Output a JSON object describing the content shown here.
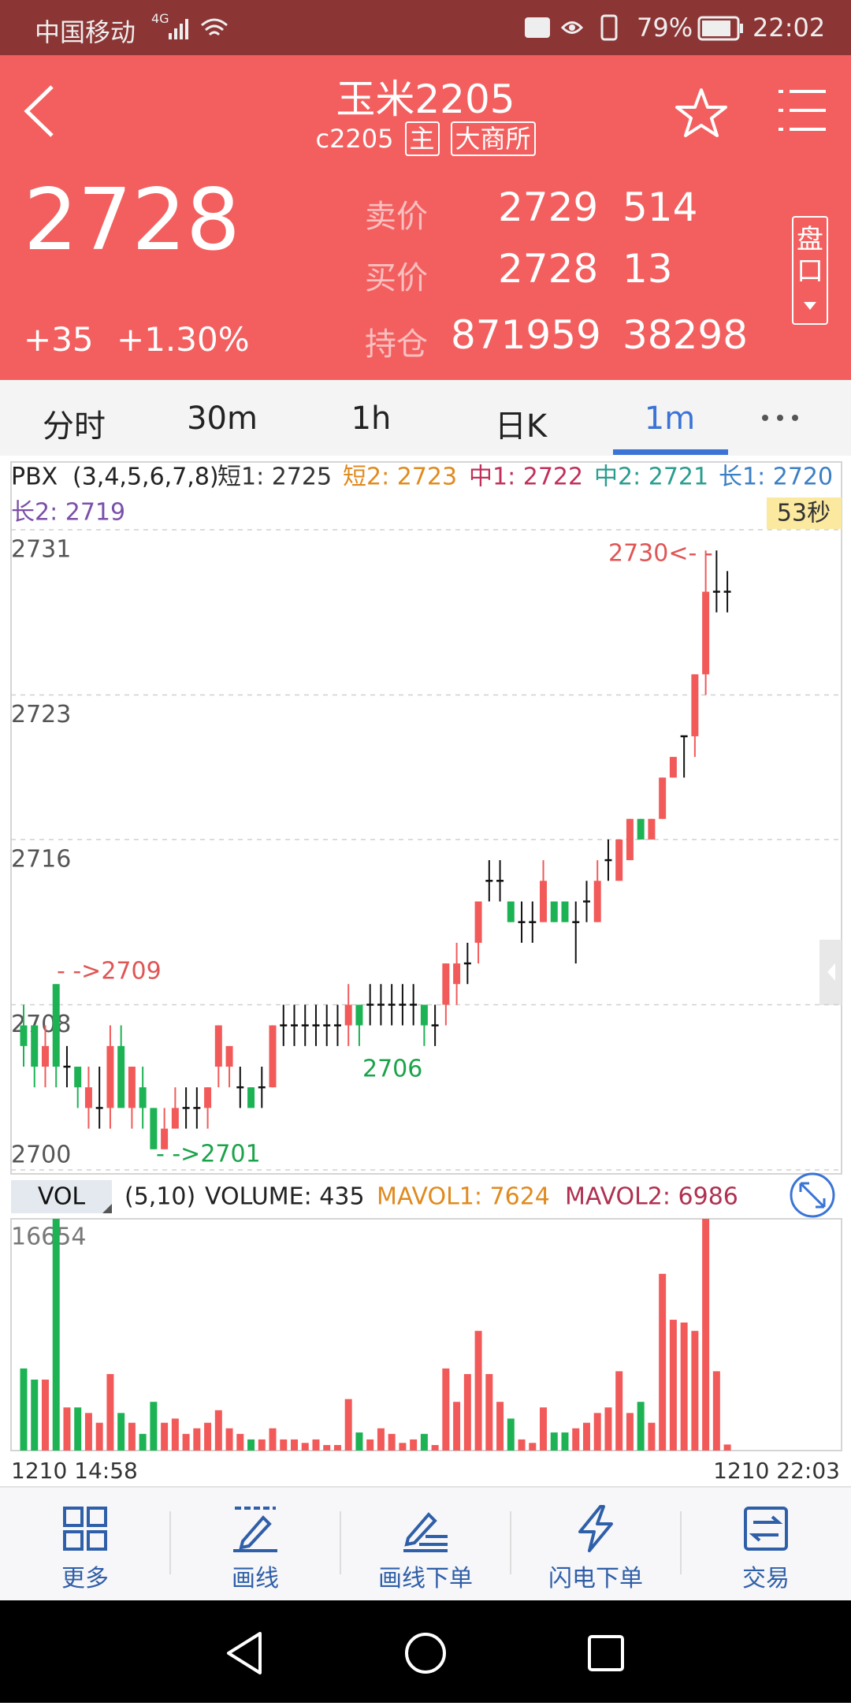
{
  "status_bar": {
    "carrier": "中国移动",
    "network": "4G",
    "battery": "79%",
    "time": "22:02"
  },
  "header": {
    "title": "玉米2205",
    "code": "c2205",
    "tag_main": "主",
    "exchange": "大商所"
  },
  "quote": {
    "last": "2728",
    "change": "+35",
    "change_pct": "+1.30%",
    "rows": [
      {
        "label": "卖价",
        "price": "2729",
        "volume": "514"
      },
      {
        "label": "买价",
        "price": "2728",
        "volume": "13"
      },
      {
        "label": "持仓",
        "price": "871959",
        "volume": "38298"
      }
    ],
    "panel_button": "盘口"
  },
  "tabs": [
    "分时",
    "30m",
    "1h",
    "日K",
    "1m"
  ],
  "chart_data": {
    "type": "candlestick",
    "indicator": "PBX",
    "params": "(3,4,5,6,7,8)",
    "legend": [
      {
        "name": "短1: 2725",
        "color": "#333333"
      },
      {
        "name": "短2: 2723",
        "color": "#e08a1e"
      },
      {
        "name": "中1: 2722",
        "color": "#c0305a"
      },
      {
        "name": "中2: 2721",
        "color": "#2a9d8f"
      },
      {
        "name": "长1: 2720",
        "color": "#3b7fc4"
      },
      {
        "name": "长2: 2719",
        "color": "#7b4fa8"
      }
    ],
    "timer": "53秒",
    "up_color": "#f25a5a",
    "down_color": "#1db354",
    "flat_color": "#111111",
    "open": [
      2707,
      2707,
      2705,
      2709,
      2705,
      2705,
      2703,
      2703,
      2703,
      2706,
      2703,
      2704,
      2703,
      2701,
      2702,
      2703,
      2703,
      2703,
      2705,
      2705,
      2704,
      2704,
      2704,
      2704,
      2707,
      2707,
      2707,
      2707,
      2707,
      2707,
      2707,
      2708,
      2708,
      2708,
      2708,
      2708,
      2708,
      2708,
      2707,
      2708,
      2709,
      2710,
      2711,
      2714,
      2714,
      2713,
      2712,
      2712,
      2712,
      2713,
      2713,
      2712,
      2713,
      2712,
      2715,
      2714,
      2715,
      2717,
      2716,
      2717,
      2719,
      2721,
      2721,
      2724,
      2728,
      2728
    ],
    "high": [
      2708,
      2707,
      2707,
      2709,
      2706,
      2705,
      2705,
      2705,
      2707,
      2707,
      2705,
      2705,
      2703,
      2703,
      2704,
      2704,
      2704,
      2704,
      2707,
      2706,
      2705,
      2704,
      2705,
      2707,
      2708,
      2708,
      2708,
      2708,
      2708,
      2708,
      2709,
      2708,
      2709,
      2709,
      2709,
      2709,
      2709,
      2708,
      2708,
      2710,
      2711,
      2711,
      2713,
      2715,
      2715,
      2713,
      2713,
      2713,
      2715,
      2713,
      2713,
      2713,
      2714,
      2715,
      2716,
      2716,
      2717,
      2717,
      2717,
      2719,
      2720,
      2721,
      2724,
      2730,
      2730,
      2729
    ],
    "low": [
      2705,
      2704,
      2704,
      2704,
      2704,
      2703,
      2702,
      2702,
      2702,
      2703,
      2702,
      2702,
      2701,
      2701,
      2702,
      2702,
      2702,
      2702,
      2704,
      2704,
      2703,
      2703,
      2703,
      2704,
      2706,
      2706,
      2706,
      2706,
      2706,
      2706,
      2706,
      2706,
      2707,
      2707,
      2707,
      2707,
      2707,
      2706,
      2706,
      2707,
      2708,
      2709,
      2710,
      2713,
      2713,
      2712,
      2711,
      2711,
      2712,
      2712,
      2712,
      2710,
      2712,
      2712,
      2714,
      2714,
      2715,
      2716,
      2716,
      2717,
      2719,
      2719,
      2720,
      2723,
      2727,
      2727
    ],
    "close": [
      2706,
      2705,
      2706,
      2705,
      2705,
      2704,
      2704,
      2703,
      2706,
      2703,
      2705,
      2703,
      2701,
      2702,
      2703,
      2703,
      2703,
      2704,
      2707,
      2706,
      2704,
      2703,
      2704,
      2707,
      2707,
      2707,
      2707,
      2707,
      2707,
      2707,
      2708,
      2707,
      2708,
      2708,
      2708,
      2708,
      2708,
      2707,
      2707,
      2710,
      2710,
      2710,
      2713,
      2714,
      2714,
      2712,
      2712,
      2712,
      2714,
      2712,
      2712,
      2712,
      2713,
      2714,
      2715,
      2716,
      2717,
      2716,
      2717,
      2719,
      2720,
      2721,
      2724,
      2728,
      2728,
      2728
    ],
    "ylim": [
      2700,
      2731
    ],
    "yticks": [
      2700,
      2708,
      2716,
      2723,
      2731
    ],
    "grid": true,
    "annotations": [
      {
        "text": "- ->2709",
        "color": "#e05555"
      },
      {
        "text": "- ->2701",
        "color": "#1aa34a"
      },
      {
        "text": "2706",
        "color": "#1aa34a"
      },
      {
        "text": "2730<- -",
        "color": "#e05555"
      }
    ],
    "volume": {
      "label": "VOL",
      "params": "(5,10)",
      "current": "VOLUME: 435",
      "ma1": {
        "text": "MAVOL1: 7624",
        "color": "#e08a1e"
      },
      "ma2": {
        "text": "MAVOL2: 6986",
        "color": "#b03050"
      },
      "values": [
        5900,
        5100,
        5100,
        16654,
        3100,
        3100,
        2700,
        2000,
        5500,
        2700,
        2000,
        1200,
        3500,
        2000,
        2300,
        1200,
        1600,
        2000,
        2900,
        1600,
        1200,
        800,
        800,
        1600,
        800,
        800,
        550,
        800,
        400,
        400,
        3700,
        1300,
        800,
        1600,
        1200,
        550,
        800,
        1200,
        400,
        5900,
        3500,
        5500,
        8600,
        5500,
        3500,
        2300,
        800,
        550,
        3100,
        1300,
        1300,
        1600,
        2000,
        2700,
        3100,
        5700,
        2700,
        3500,
        2000,
        12700,
        9400,
        9200,
        8600,
        16654,
        5700,
        435
      ],
      "ylim": [
        0,
        16654
      ],
      "yticks": [
        16654
      ]
    },
    "x_labels": [
      "1210 14:58",
      "1210 22:03"
    ]
  },
  "toolbar": [
    "更多",
    "画线",
    "画线下单",
    "闪电下单",
    "交易"
  ]
}
